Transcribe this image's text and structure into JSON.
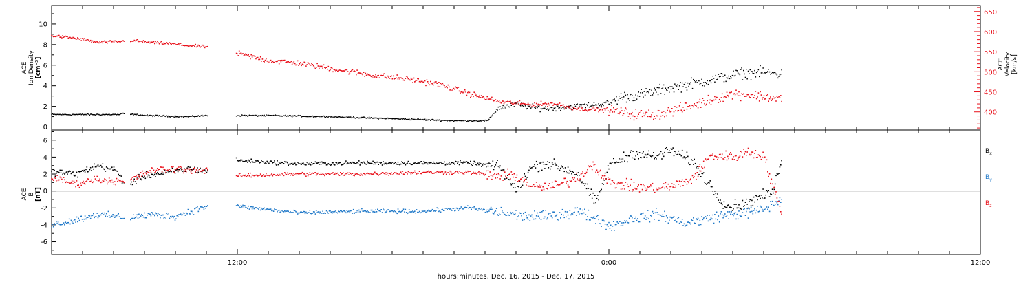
{
  "colors": {
    "black": "#000000",
    "red": "#e8101a",
    "blue": "#1f78c8"
  },
  "xaxis": {
    "label": "hours:minutes, Dec. 16, 2015 - Dec. 17, 2015",
    "range_hours": [
      6,
      36
    ],
    "tick_labels": [
      {
        "hour": 12,
        "text": "12:00"
      },
      {
        "hour": 24,
        "text": "0:00"
      },
      {
        "hour": 36,
        "text": "12:00"
      }
    ]
  },
  "chart_data": [
    {
      "type": "scatter",
      "panel": "top",
      "left_axis": {
        "label_lines": [
          "ACE",
          "Ion Density",
          "[cm⁻³]"
        ],
        "range": [
          -0.3,
          11.8
        ],
        "ticks": [
          0,
          2,
          4,
          6,
          8,
          10
        ]
      },
      "right_axis": {
        "label_lines": [
          "ACE",
          "Velocity",
          "[km/s]"
        ],
        "range": [
          355,
          665
        ],
        "ticks": [
          400,
          450,
          500,
          550,
          600,
          650
        ]
      },
      "series": [
        {
          "name": "",
          "axis": "left",
          "color": "#000000",
          "points": [
            [
              6.0,
              1.2
            ],
            [
              8.2,
              1.2
            ],
            [
              8.3,
              1.3
            ],
            [
              8.6,
              1.2
            ],
            [
              9.1,
              1.1
            ],
            [
              10.4,
              1.0
            ],
            [
              11.0,
              1.1
            ],
            [
              13.0,
              1.1
            ],
            [
              15.0,
              1.0
            ],
            [
              17.0,
              0.8
            ],
            [
              19.0,
              0.6
            ],
            [
              20.1,
              0.6
            ],
            [
              20.4,
              1.8
            ],
            [
              21.0,
              2.2
            ],
            [
              21.5,
              1.9
            ],
            [
              22.0,
              1.8
            ],
            [
              23.0,
              2.0
            ],
            [
              24.0,
              2.3
            ],
            [
              24.4,
              2.9
            ],
            [
              25.0,
              3.1
            ],
            [
              26.0,
              3.8
            ],
            [
              27.0,
              4.4
            ],
            [
              28.0,
              5.0
            ],
            [
              28.3,
              5.2
            ],
            [
              29.0,
              5.3
            ],
            [
              29.6,
              5.1
            ]
          ]
        },
        {
          "name": "",
          "axis": "right",
          "color": "#e8101a",
          "points": [
            [
              6.0,
              590
            ],
            [
              6.8,
              583
            ],
            [
              7.5,
              573
            ],
            [
              8.2,
              575
            ],
            [
              8.6,
              578
            ],
            [
              9.2,
              573
            ],
            [
              9.8,
              570
            ],
            [
              10.4,
              565
            ],
            [
              11.0,
              562
            ],
            [
              13.0,
              528
            ],
            [
              14.0,
              521
            ],
            [
              15.0,
              508
            ],
            [
              16.5,
              490
            ],
            [
              17.5,
              482
            ],
            [
              18.5,
              469
            ],
            [
              19.5,
              445
            ],
            [
              20.5,
              425
            ],
            [
              21.5,
              418
            ],
            [
              22.2,
              421
            ],
            [
              23.0,
              408
            ],
            [
              24.0,
              405
            ],
            [
              24.8,
              394
            ],
            [
              25.5,
              393
            ],
            [
              26.5,
              411
            ],
            [
              27.5,
              435
            ],
            [
              28.0,
              445
            ],
            [
              28.5,
              443
            ],
            [
              29.0,
              438
            ],
            [
              29.6,
              432
            ]
          ]
        }
      ]
    },
    {
      "type": "scatter",
      "panel": "bottom",
      "left_axis": {
        "label_lines": [
          "ACE",
          "B",
          "[nT]"
        ],
        "range": [
          -7.5,
          7.2
        ],
        "ticks": [
          -6,
          -4,
          -2,
          0,
          2,
          4,
          6
        ]
      },
      "legend": [
        {
          "text": "B",
          "sub": "x",
          "color": "#000000"
        },
        {
          "text": "B",
          "sub": "y",
          "color": "#1f78c8"
        },
        {
          "text": "B",
          "sub": "z",
          "color": "#e8101a"
        }
      ],
      "series": [
        {
          "name": "Bx",
          "color": "#000000",
          "points": [
            [
              6.0,
              2.3
            ],
            [
              6.8,
              2.0
            ],
            [
              7.5,
              3.0
            ],
            [
              8.1,
              2.4
            ],
            [
              8.4,
              0.6
            ],
            [
              9.0,
              1.8
            ],
            [
              9.7,
              2.1
            ],
            [
              10.4,
              2.6
            ],
            [
              11.0,
              2.4
            ],
            [
              12.0,
              3.6
            ],
            [
              14.0,
              3.2
            ],
            [
              16.0,
              3.3
            ],
            [
              18.0,
              3.3
            ],
            [
              19.5,
              3.3
            ],
            [
              20.5,
              2.8
            ],
            [
              21.0,
              0.0
            ],
            [
              21.5,
              2.8
            ],
            [
              22.0,
              3.3
            ],
            [
              22.6,
              2.6
            ],
            [
              23.0,
              2.0
            ],
            [
              23.6,
              -1.5
            ],
            [
              24.0,
              3.0
            ],
            [
              24.8,
              4.5
            ],
            [
              25.5,
              4.0
            ],
            [
              26.0,
              4.8
            ],
            [
              26.7,
              3.5
            ],
            [
              27.2,
              1.0
            ],
            [
              27.8,
              -1.8
            ],
            [
              28.4,
              -1.6
            ],
            [
              28.8,
              -0.8
            ],
            [
              29.3,
              -0.2
            ],
            [
              29.6,
              4.2
            ]
          ]
        },
        {
          "name": "By",
          "color": "#1f78c8",
          "points": [
            [
              6.0,
              -4.0
            ],
            [
              6.7,
              -3.5
            ],
            [
              7.4,
              -2.8
            ],
            [
              8.1,
              -3.0
            ],
            [
              8.4,
              -3.2
            ],
            [
              9.2,
              -2.8
            ],
            [
              10.0,
              -3.0
            ],
            [
              11.0,
              -1.8
            ],
            [
              12.0,
              -1.8
            ],
            [
              14.0,
              -2.6
            ],
            [
              16.0,
              -2.4
            ],
            [
              18.0,
              -2.4
            ],
            [
              19.5,
              -2.0
            ],
            [
              20.6,
              -2.6
            ],
            [
              21.3,
              -3.0
            ],
            [
              22.0,
              -3.0
            ],
            [
              23.0,
              -2.4
            ],
            [
              23.8,
              -3.6
            ],
            [
              24.0,
              -4.2
            ],
            [
              24.8,
              -3.2
            ],
            [
              25.6,
              -2.8
            ],
            [
              26.5,
              -3.8
            ],
            [
              27.5,
              -3.0
            ],
            [
              28.4,
              -2.6
            ],
            [
              29.0,
              -2.2
            ],
            [
              29.6,
              -1.0
            ]
          ]
        },
        {
          "name": "Bz",
          "color": "#e8101a",
          "points": [
            [
              6.0,
              1.6
            ],
            [
              6.8,
              0.8
            ],
            [
              7.4,
              1.4
            ],
            [
              8.0,
              1.2
            ],
            [
              8.4,
              1.0
            ],
            [
              9.2,
              2.4
            ],
            [
              10.0,
              2.6
            ],
            [
              11.0,
              2.4
            ],
            [
              12.0,
              1.8
            ],
            [
              14.0,
              2.0
            ],
            [
              16.0,
              2.0
            ],
            [
              18.0,
              2.2
            ],
            [
              19.5,
              2.2
            ],
            [
              20.3,
              1.8
            ],
            [
              21.0,
              1.8
            ],
            [
              21.6,
              0.4
            ],
            [
              22.3,
              0.6
            ],
            [
              23.0,
              1.6
            ],
            [
              23.5,
              3.2
            ],
            [
              24.0,
              1.0
            ],
            [
              24.8,
              0.5
            ],
            [
              25.5,
              0.3
            ],
            [
              26.1,
              0.6
            ],
            [
              26.7,
              1.4
            ],
            [
              27.3,
              4.2
            ],
            [
              28.0,
              4.0
            ],
            [
              28.5,
              4.6
            ],
            [
              29.0,
              4.2
            ],
            [
              29.6,
              -3.0
            ]
          ]
        }
      ]
    }
  ]
}
